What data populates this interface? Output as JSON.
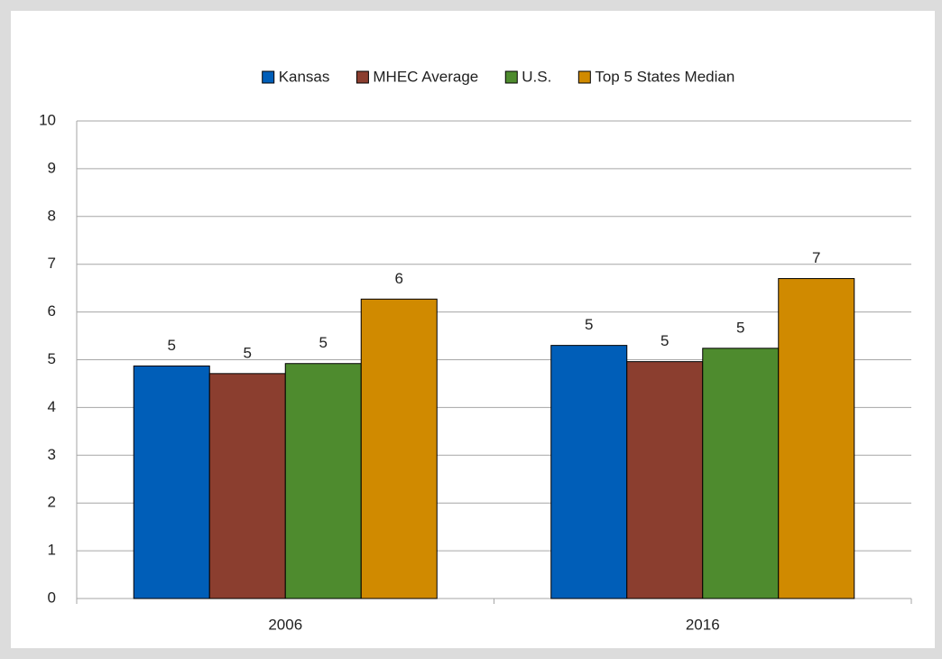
{
  "chart_data": {
    "type": "bar",
    "categories": [
      "2006",
      "2016"
    ],
    "series": [
      {
        "name": "Kansas",
        "color": "#005eb8",
        "values": [
          4.87,
          5.3
        ],
        "value_labels": [
          "5",
          "5"
        ]
      },
      {
        "name": "MHEC Average",
        "color": "#8b3e2f",
        "values": [
          4.71,
          4.96
        ],
        "value_labels": [
          "5",
          "5"
        ]
      },
      {
        "name": "U.S.",
        "color": "#4e8b2e",
        "values": [
          4.92,
          5.24
        ],
        "value_labels": [
          "5",
          "5"
        ]
      },
      {
        "name": "Top 5 States Median",
        "color": "#d08a00",
        "values": [
          6.27,
          6.7
        ],
        "value_labels": [
          "6",
          "7"
        ]
      }
    ],
    "ylim": [
      0,
      10
    ],
    "yticks": [
      0,
      1,
      2,
      3,
      4,
      5,
      6,
      7,
      8,
      9,
      10
    ],
    "grid": true,
    "legend": "top"
  }
}
